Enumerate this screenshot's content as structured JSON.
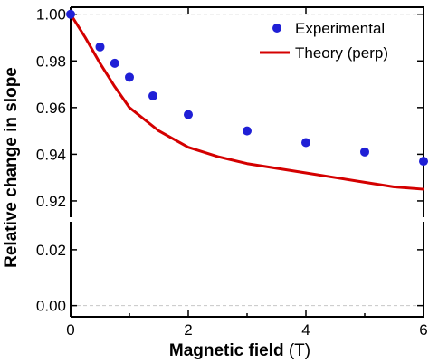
{
  "chart_data": {
    "type": "line",
    "xlabel": "Magnetic field",
    "xlabel_unit": "(T)",
    "ylabel": "Relative change in slope",
    "x_ticks": [
      "0",
      "2",
      "4",
      "6"
    ],
    "y_ticks_upper": [
      "1.00",
      "0.98",
      "0.96",
      "0.94",
      "0.92"
    ],
    "y_ticks_lower": [
      "0.02",
      "0.00"
    ],
    "xlim": [
      0,
      6
    ],
    "ylim_upper": [
      0.913,
      1.003
    ],
    "ylim_lower": [
      -0.004,
      0.03
    ],
    "axis_break": true,
    "grid": "dashed at 1.00 and 0.00",
    "legend_position": "top-right",
    "series": [
      {
        "name": "Experimental",
        "kind": "scatter",
        "color": "#1f1fd6",
        "x": [
          0,
          0.5,
          0.75,
          1.0,
          1.4,
          2.0,
          3.0,
          4.0,
          5.0,
          6.0
        ],
        "y": [
          1.0,
          0.986,
          0.979,
          0.973,
          0.965,
          0.957,
          0.95,
          0.945,
          0.941,
          0.937
        ]
      },
      {
        "name": "Theory (perp)",
        "kind": "line",
        "color": "#d40000",
        "x": [
          0,
          0.25,
          0.5,
          0.75,
          1.0,
          1.5,
          2.0,
          2.5,
          3.0,
          3.5,
          4.0,
          4.5,
          5.0,
          5.5,
          6.0
        ],
        "y": [
          1.0,
          0.99,
          0.979,
          0.969,
          0.96,
          0.95,
          0.943,
          0.939,
          0.936,
          0.934,
          0.932,
          0.93,
          0.928,
          0.926,
          0.925
        ]
      }
    ]
  }
}
